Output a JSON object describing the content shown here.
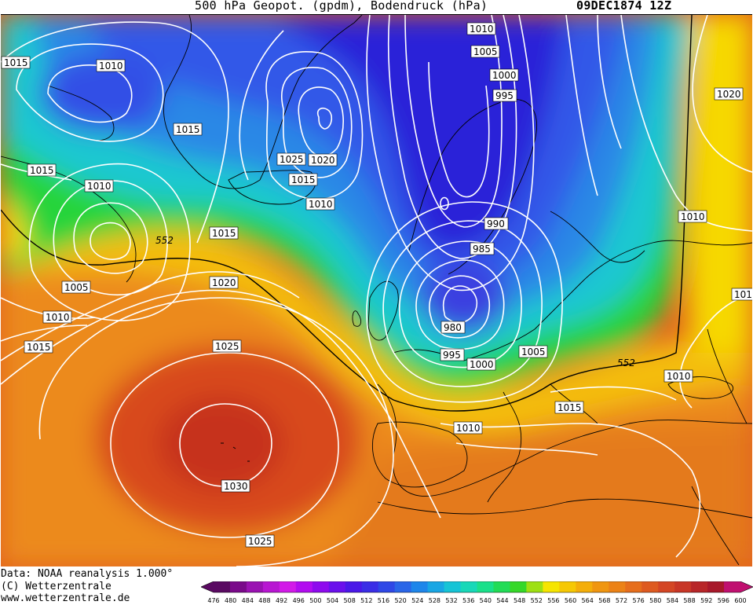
{
  "header": {
    "title_left": "500 hPa Geopot. (gpdm), Bodendruck (hPa)",
    "title_right": "09DEC1874 12Z"
  },
  "map": {
    "height_contour_label": "552",
    "isobar_labels": [
      "1010",
      "1005",
      "1000",
      "995",
      "1015",
      "1010",
      "1015",
      "1025",
      "1020",
      "1015",
      "1010",
      "1015",
      "1010",
      "1005",
      "1010",
      "1015",
      "1015",
      "1020",
      "1025",
      "1030",
      "1025",
      "990",
      "985",
      "980",
      "995",
      "1000",
      "1005",
      "1015",
      "1010",
      "1020",
      "1010",
      "1010",
      "101"
    ],
    "colors": {
      "low_core": "#2e1ed9",
      "blue": "#3d5be6",
      "cyan": "#19c6d8",
      "green": "#25d63a",
      "yellow": "#f6e500",
      "orange": "#ec8a1c",
      "high_core": "#cc3a20",
      "isobar": "#ffffff",
      "coast": "#000000"
    }
  },
  "footer": {
    "line1": "Data: NOAA reanalysis 1.000°",
    "line2": "(C) Wetterzentrale",
    "line3": "www.wetterzentrale.de"
  },
  "colorbar": {
    "ticks": [
      "476",
      "480",
      "484",
      "488",
      "492",
      "496",
      "500",
      "504",
      "508",
      "512",
      "516",
      "520",
      "524",
      "528",
      "532",
      "536",
      "540",
      "544",
      "548",
      "552",
      "556",
      "560",
      "564",
      "568",
      "572",
      "576",
      "580",
      "584",
      "588",
      "592",
      "596",
      "600"
    ],
    "colors": [
      "#5a0a62",
      "#7a0a8a",
      "#9a12b2",
      "#b816d2",
      "#d21ae8",
      "#b20cf0",
      "#8e0aee",
      "#6a10ec",
      "#4a18e8",
      "#3a2ee6",
      "#2f48e6",
      "#2a66e8",
      "#1e86ea",
      "#18a6e4",
      "#16c4d6",
      "#18d8b8",
      "#1ae08a",
      "#22dc56",
      "#36d828",
      "#9ee012",
      "#f6e500",
      "#f6c804",
      "#f4ae0a",
      "#f09610",
      "#ec8216",
      "#e66e1c",
      "#de5a20",
      "#d44624",
      "#c83626",
      "#b82628",
      "#a8182a",
      "#c01070"
    ]
  }
}
